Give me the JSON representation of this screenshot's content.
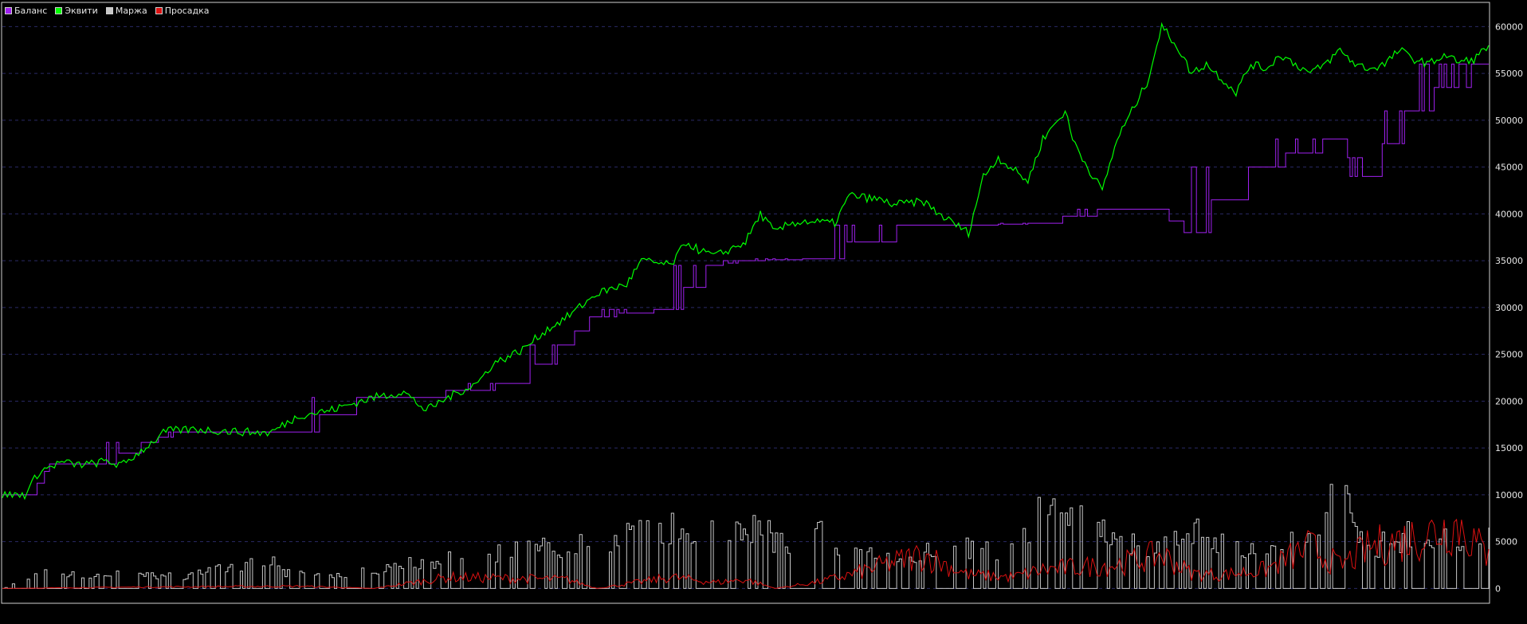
{
  "chart_data": {
    "type": "line",
    "title": "",
    "xlabel": "",
    "ylabel": "",
    "ylim": [
      -1500,
      62500
    ],
    "y_ticks": [
      "60000",
      "55000",
      "50000",
      "45000",
      "40000",
      "35000",
      "30000",
      "25000",
      "20000",
      "15000",
      "10000",
      "5000",
      "0"
    ],
    "y_tick_values": [
      60000,
      55000,
      50000,
      45000,
      40000,
      35000,
      30000,
      25000,
      20000,
      15000,
      10000,
      5000,
      0
    ],
    "grid": "horizontal dashed",
    "legend_position": "top-left",
    "colors": {
      "background": "#000000",
      "frame": "#d0d0d0",
      "grid": "#2a2a66",
      "balance": "#a020f0",
      "equity": "#00ff00",
      "margin": "#c8c8c8",
      "drawdown": "#dd1111"
    },
    "series": [
      {
        "name": "Баланс",
        "color": "#a020f0",
        "x": [
          0,
          2,
          3,
          3.5,
          5,
          7,
          10,
          12,
          18,
          20,
          25,
          27,
          28,
          35,
          38,
          40,
          45,
          48,
          50,
          55,
          62,
          66,
          70,
          75,
          78,
          80,
          85,
          90,
          92,
          95,
          100
        ],
        "values": [
          10000,
          10000,
          12500,
          13300,
          13300,
          13300,
          15600,
          16700,
          16700,
          16700,
          20400,
          20400,
          20400,
          21900,
          26000,
          29000,
          29800,
          34500,
          35000,
          35200,
          38800,
          38800,
          39000,
          40500,
          40500,
          38000,
          45000,
          48000,
          44000,
          51000,
          56000
        ]
      },
      {
        "name": "Эквити",
        "color": "#00ff00",
        "x": [
          0,
          1.5,
          2.5,
          4,
          5,
          6,
          7,
          8,
          10,
          11,
          13,
          15,
          18,
          20,
          22,
          25,
          27,
          28.5,
          30,
          32,
          33,
          35,
          36.5,
          38,
          40,
          42,
          43,
          45,
          46,
          47,
          48,
          50,
          51,
          52,
          53,
          54,
          56,
          57,
          59,
          60,
          62,
          63,
          64,
          65,
          66,
          67,
          69,
          70,
          71.5,
          72,
          73,
          74,
          75,
          76,
          77,
          78,
          79,
          80,
          81,
          82,
          83,
          84,
          85,
          86,
          87,
          88,
          89,
          90,
          91,
          92,
          93,
          94,
          95,
          96,
          97,
          98,
          99,
          100
        ],
        "values": [
          10000,
          10000,
          12500,
          13500,
          13200,
          13300,
          13600,
          13100,
          15500,
          16800,
          17000,
          16800,
          16600,
          18500,
          19000,
          20400,
          21000,
          19000,
          20400,
          22000,
          24000,
          25500,
          27500,
          29000,
          31500,
          32500,
          35000,
          34500,
          37000,
          36000,
          35500,
          37000,
          40000,
          38000,
          39000,
          39200,
          39000,
          42000,
          41500,
          41000,
          41300,
          40000,
          39000,
          38000,
          44000,
          46000,
          43500,
          48000,
          51000,
          48000,
          45000,
          42500,
          48000,
          51000,
          54000,
          60000,
          58000,
          55000,
          56000,
          54500,
          53000,
          56000,
          55500,
          57000,
          56000,
          55000,
          56000,
          57500,
          56000,
          55500,
          56000,
          57500,
          56500,
          56000,
          57000,
          56200,
          56500,
          58000
        ]
      },
      {
        "name": "Маржа",
        "color": "#c8c8c8",
        "x": [
          0,
          2,
          3,
          5,
          8,
          12,
          18,
          19,
          20,
          22,
          25,
          30,
          35,
          40,
          45,
          48,
          50,
          53,
          55,
          57,
          60,
          63,
          65,
          68,
          70,
          72,
          75,
          78,
          80,
          82,
          85,
          88,
          90,
          92,
          95,
          98,
          100
        ],
        "values": [
          0,
          1500,
          2500,
          1500,
          1800,
          1500,
          3500,
          1800,
          2000,
          1500,
          2500,
          3800,
          4800,
          6000,
          7500,
          8000,
          8200,
          5000,
          7000,
          5000,
          4000,
          5000,
          4900,
          5000,
          11000,
          10500,
          5500,
          5000,
          7000,
          5500,
          5000,
          6000,
          12500,
          5000,
          7000,
          5500,
          6500
        ]
      },
      {
        "name": "Просадка",
        "color": "#dd1111",
        "x": [
          0,
          10,
          20,
          25,
          30,
          38,
          40,
          45,
          48,
          50,
          52,
          55,
          57,
          60,
          62,
          65,
          68,
          70,
          75,
          78,
          80,
          82,
          85,
          88,
          90,
          92,
          95,
          98,
          100
        ],
        "values": [
          0,
          200,
          300,
          0,
          1500,
          1200,
          0,
          1500,
          800,
          1200,
          0,
          900,
          1800,
          3500,
          4500,
          1800,
          1500,
          2500,
          3200,
          4500,
          2000,
          1800,
          2500,
          5500,
          3000,
          5500,
          6800,
          8500,
          4200
        ]
      }
    ]
  }
}
